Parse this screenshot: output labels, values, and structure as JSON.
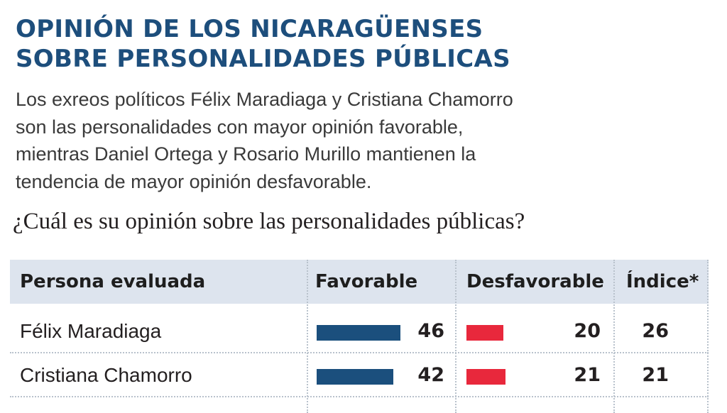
{
  "title_line1": "OPINIÓN DE LOS NICARAGÜENSES",
  "title_line2": "SOBRE PERSONALIDADES PÚBLICAS",
  "subtitle_lines": [
    "Los exreos políticos Félix Maradiaga y Cristiana Chamorro",
    "son las personalidades con mayor opinión favorable,",
    "mientras Daniel Ortega y Rosario Murillo mantienen la",
    "tendencia de mayor opinión desfavorable."
  ],
  "question": "¿Cuál es su opinión sobre las personalidades públicas?",
  "colors": {
    "title": "#1d4e7c",
    "favorable_bar": "#1b4f7d",
    "desfavorable_bar": "#e8283c",
    "header_bg": "#dde4ee"
  },
  "chart_data": {
    "type": "table",
    "columns": [
      "Persona evaluada",
      "Favorable",
      "Desfavorable",
      "Índice*"
    ],
    "rows": [
      {
        "persona": "Félix Maradiaga",
        "favorable": 46,
        "desfavorable": 20,
        "indice": 26
      },
      {
        "persona": "Cristiana Chamorro",
        "favorable": 42,
        "desfavorable": 21,
        "indice": 21
      }
    ],
    "bar_scale_max": 46
  }
}
